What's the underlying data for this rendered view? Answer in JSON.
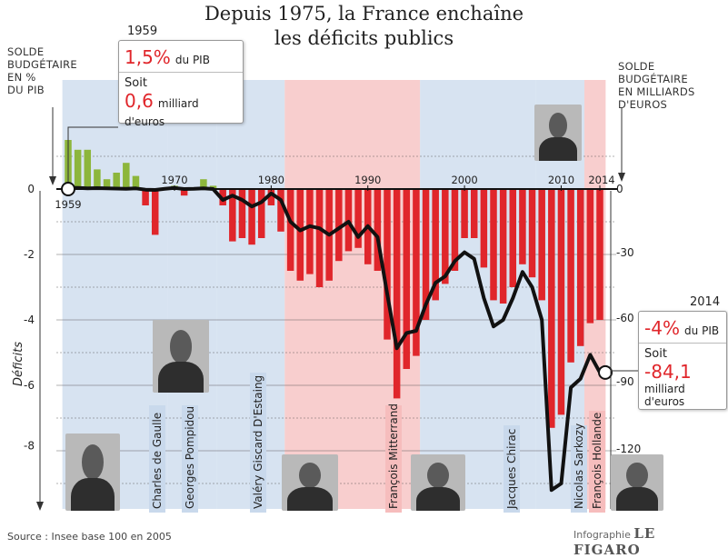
{
  "title": {
    "line1": "Depuis 1975, la France enchaîne",
    "line2": "les déficits publics"
  },
  "left_axis_label": [
    "SOLDE",
    "BUDGÉTAIRE",
    "EN %",
    "DU PIB"
  ],
  "right_axis_label": [
    "SOLDE BUDGÉTAIRE",
    "EN MILLIARDS",
    "D'EUROS"
  ],
  "deficits_label": "Déficits",
  "callout_1959": {
    "year": "1959",
    "pct": "1,5%",
    "pct_unit": "du PIB",
    "soit": "Soit",
    "amount": "0,6",
    "amount_unit": "milliard d'euros"
  },
  "callout_2014": {
    "year": "2014",
    "pct": "-4%",
    "pct_unit": "du PIB",
    "soit": "Soit",
    "amount": "-84,1",
    "amount_unit": "milliard d'euros"
  },
  "presidents": [
    {
      "name": "Charles de Gaulle",
      "color": "#c9d9ec"
    },
    {
      "name": "Georges Pompidou",
      "color": "#c9d9ec"
    },
    {
      "name": "Valéry Giscard D'Estaing",
      "color": "#c9d9ec"
    },
    {
      "name": "François Mitterrand",
      "color": "#f6bdbd"
    },
    {
      "name": "Jacques Chirac",
      "color": "#c9d9ec"
    },
    {
      "name": "Nicolas Sarkozy",
      "color": "#c9d9ec"
    },
    {
      "name": "François Hollande",
      "color": "#f6bdbd"
    }
  ],
  "photo_icons": [
    "de-gaulle-photo",
    "pompidou-photo",
    "mitterrand-photo",
    "chirac-photo",
    "sarkozy-photo",
    "hollande-photo"
  ],
  "source": "Source : Insee base 100 en 2005",
  "credit": {
    "prefix": "Infographie",
    "brand": "LE FIGARO"
  },
  "colors": {
    "surplus": "#8db63c",
    "deficit": "#e0262b",
    "right_band": "#c9d9ec",
    "left_band": "#f6bdbd",
    "line": "#111111"
  },
  "chart_data": {
    "type": "bar",
    "x_label_ticks": [
      "1959",
      "1970",
      "1980",
      "1990",
      "2000",
      "2010",
      "2014"
    ],
    "y_left_ticks": [
      "0",
      "-2",
      "-4",
      "-6",
      "-8"
    ],
    "y_right_ticks": [
      "0",
      "-30",
      "-60",
      "-90",
      "-120"
    ],
    "ylim_left": [
      -9.5,
      1.8
    ],
    "ylim_right": [
      -130,
      25
    ],
    "series": [
      {
        "name": "Solde budgétaire en % du PIB",
        "type": "bar",
        "x": [
          1959,
          1960,
          1961,
          1962,
          1963,
          1964,
          1965,
          1966,
          1967,
          1968,
          1969,
          1970,
          1971,
          1972,
          1973,
          1974,
          1975,
          1976,
          1977,
          1978,
          1979,
          1980,
          1981,
          1982,
          1983,
          1984,
          1985,
          1986,
          1987,
          1988,
          1989,
          1990,
          1991,
          1992,
          1993,
          1994,
          1995,
          1996,
          1997,
          1998,
          1999,
          2000,
          2001,
          2002,
          2003,
          2004,
          2005,
          2006,
          2007,
          2008,
          2009,
          2010,
          2011,
          2012,
          2013,
          2014
        ],
        "values": [
          1.5,
          1.2,
          1.2,
          0.6,
          0.3,
          0.5,
          0.8,
          0.4,
          -0.5,
          -1.4,
          0.0,
          0.1,
          -0.2,
          0.0,
          0.3,
          0.1,
          -0.5,
          -1.6,
          -1.5,
          -1.7,
          -1.5,
          -0.5,
          -1.3,
          -2.5,
          -2.8,
          -2.6,
          -3.0,
          -2.8,
          -2.2,
          -1.9,
          -1.8,
          -2.3,
          -2.5,
          -4.6,
          -6.4,
          -5.5,
          -5.1,
          -4.0,
          -3.4,
          -2.9,
          -2.5,
          -1.5,
          -1.5,
          -2.4,
          -3.4,
          -3.5,
          -3.0,
          -2.3,
          -2.7,
          -3.4,
          -7.3,
          -6.9,
          -5.3,
          -4.8,
          -4.1,
          -4.0
        ]
      },
      {
        "name": "Solde budgétaire en milliards d'euros",
        "type": "line",
        "x": [
          1959,
          1960,
          1961,
          1962,
          1963,
          1964,
          1965,
          1966,
          1967,
          1968,
          1969,
          1970,
          1971,
          1972,
          1973,
          1974,
          1975,
          1976,
          1977,
          1978,
          1979,
          1980,
          1981,
          1982,
          1983,
          1984,
          1985,
          1986,
          1987,
          1988,
          1989,
          1990,
          1991,
          1992,
          1993,
          1994,
          1995,
          1996,
          1997,
          1998,
          1999,
          2000,
          2001,
          2002,
          2003,
          2004,
          2005,
          2006,
          2007,
          2008,
          2009,
          2010,
          2011,
          2012,
          2013,
          2014
        ],
        "values": [
          0.6,
          0.5,
          0.3,
          0.4,
          0.3,
          0.2,
          0.1,
          0.3,
          -0.3,
          -0.4,
          0.1,
          0.5,
          0.0,
          0.1,
          0.3,
          0.0,
          -5,
          -3,
          -5,
          -8,
          -6,
          -2,
          -5,
          -15,
          -19,
          -17,
          -18,
          -21,
          -18,
          -15,
          -22,
          -17,
          -22,
          -48,
          -73,
          -66,
          -65,
          -53,
          -43,
          -40,
          -33,
          -29,
          -32,
          -50,
          -63,
          -60,
          -50,
          -38,
          -45,
          -60,
          -138,
          -135,
          -91,
          -87,
          -76,
          -84.1
        ]
      }
    ]
  }
}
